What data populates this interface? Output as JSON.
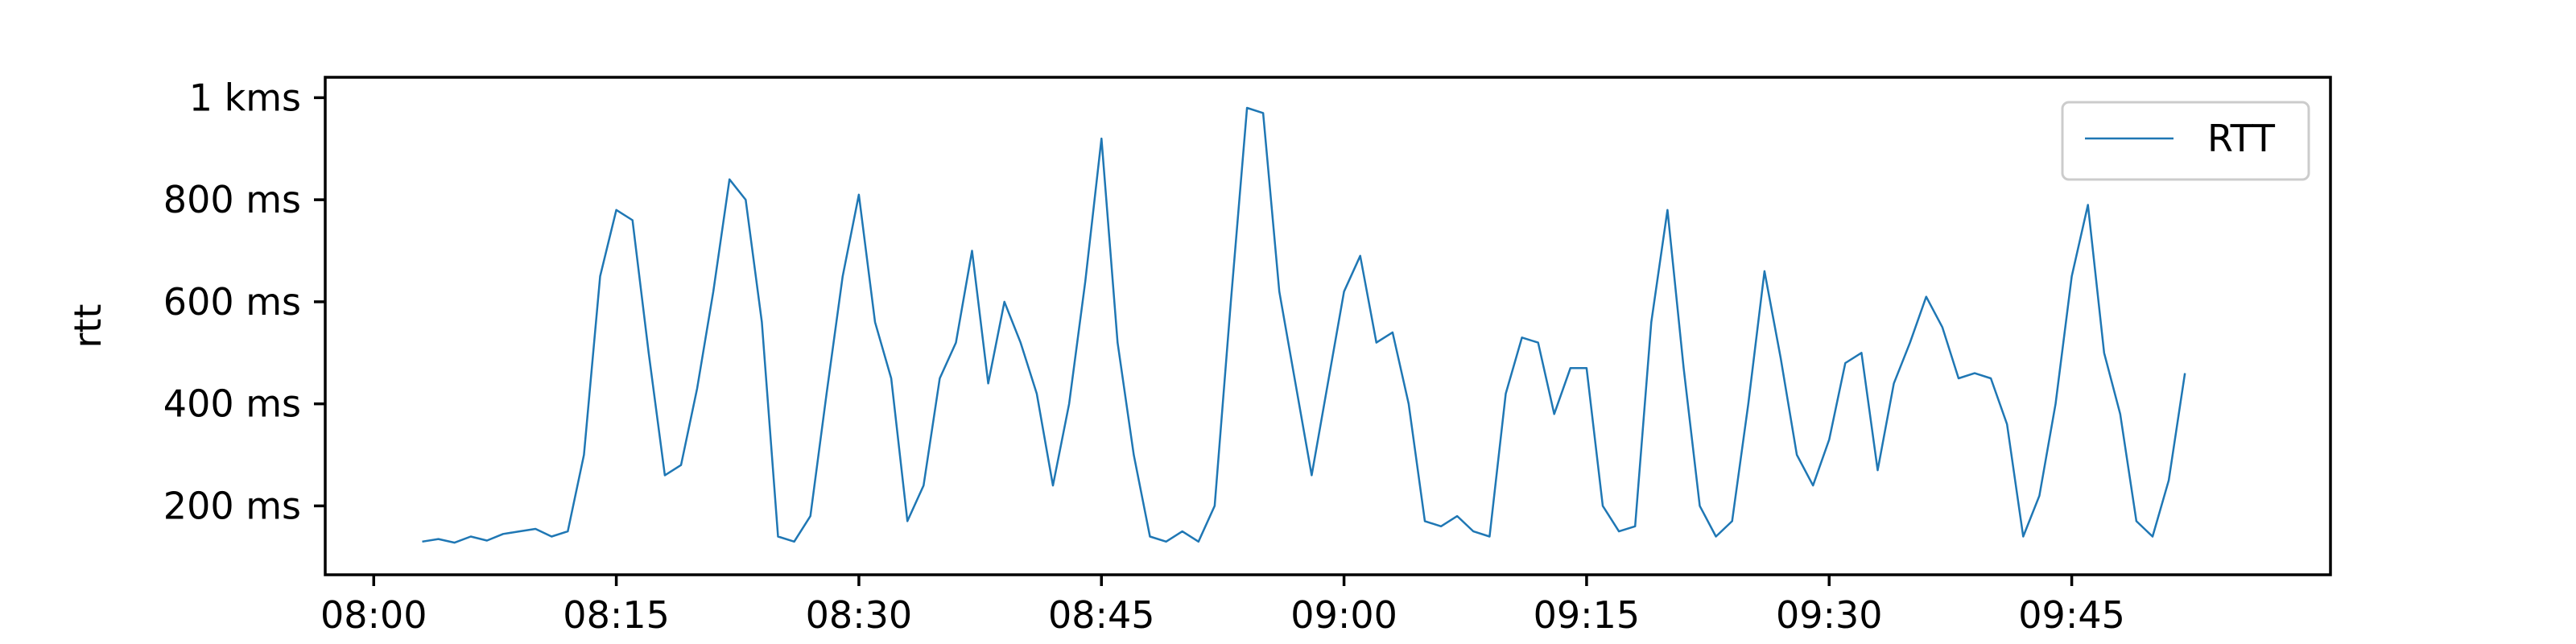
{
  "chart_data": {
    "type": "line",
    "title": "",
    "xlabel": "",
    "ylabel": "rtt",
    "xlim": [
      "07:57",
      "10:01"
    ],
    "ylim": [
      65,
      1040
    ],
    "grid": false,
    "legend_position": "top-right",
    "x_ticks": [
      "08:00",
      "08:15",
      "08:30",
      "08:45",
      "09:00",
      "09:15",
      "09:30",
      "09:45"
    ],
    "y_ticks": [
      {
        "value": 200,
        "label": "200 ms"
      },
      {
        "value": 400,
        "label": "400 ms"
      },
      {
        "value": 600,
        "label": "600 ms"
      },
      {
        "value": 800,
        "label": "800 ms"
      },
      {
        "value": 1000,
        "label": "1 kms"
      }
    ],
    "series": [
      {
        "name": "RTT",
        "color": "#1f77b4",
        "points": [
          [
            "08:03",
            130
          ],
          [
            "08:04",
            135
          ],
          [
            "08:05",
            128
          ],
          [
            "08:06",
            140
          ],
          [
            "08:07",
            132
          ],
          [
            "08:08",
            145
          ],
          [
            "08:09",
            150
          ],
          [
            "08:10",
            155
          ],
          [
            "08:11",
            140
          ],
          [
            "08:12",
            150
          ],
          [
            "08:13",
            300
          ],
          [
            "08:14",
            650
          ],
          [
            "08:15",
            780
          ],
          [
            "08:16",
            760
          ],
          [
            "08:17",
            500
          ],
          [
            "08:18",
            260
          ],
          [
            "08:19",
            280
          ],
          [
            "08:20",
            430
          ],
          [
            "08:21",
            620
          ],
          [
            "08:22",
            840
          ],
          [
            "08:23",
            800
          ],
          [
            "08:24",
            560
          ],
          [
            "08:25",
            140
          ],
          [
            "08:26",
            130
          ],
          [
            "08:27",
            180
          ],
          [
            "08:28",
            420
          ],
          [
            "08:29",
            650
          ],
          [
            "08:30",
            810
          ],
          [
            "08:31",
            560
          ],
          [
            "08:32",
            450
          ],
          [
            "08:33",
            170
          ],
          [
            "08:34",
            240
          ],
          [
            "08:35",
            450
          ],
          [
            "08:36",
            520
          ],
          [
            "08:37",
            700
          ],
          [
            "08:38",
            440
          ],
          [
            "08:39",
            600
          ],
          [
            "08:40",
            520
          ],
          [
            "08:41",
            420
          ],
          [
            "08:42",
            240
          ],
          [
            "08:43",
            400
          ],
          [
            "08:44",
            640
          ],
          [
            "08:45",
            920
          ],
          [
            "08:46",
            520
          ],
          [
            "08:47",
            300
          ],
          [
            "08:48",
            140
          ],
          [
            "08:49",
            130
          ],
          [
            "08:50",
            150
          ],
          [
            "08:51",
            130
          ],
          [
            "08:52",
            200
          ],
          [
            "08:53",
            600
          ],
          [
            "08:54",
            980
          ],
          [
            "08:55",
            970
          ],
          [
            "08:56",
            620
          ],
          [
            "08:57",
            440
          ],
          [
            "08:58",
            260
          ],
          [
            "08:59",
            440
          ],
          [
            "09:00",
            620
          ],
          [
            "09:01",
            690
          ],
          [
            "09:02",
            520
          ],
          [
            "09:03",
            540
          ],
          [
            "09:04",
            400
          ],
          [
            "09:05",
            170
          ],
          [
            "09:06",
            160
          ],
          [
            "09:07",
            180
          ],
          [
            "09:08",
            150
          ],
          [
            "09:09",
            140
          ],
          [
            "09:10",
            420
          ],
          [
            "09:11",
            530
          ],
          [
            "09:12",
            520
          ],
          [
            "09:13",
            380
          ],
          [
            "09:14",
            470
          ],
          [
            "09:15",
            470
          ],
          [
            "09:16",
            200
          ],
          [
            "09:17",
            150
          ],
          [
            "09:18",
            160
          ],
          [
            "09:19",
            560
          ],
          [
            "09:20",
            780
          ],
          [
            "09:21",
            470
          ],
          [
            "09:22",
            200
          ],
          [
            "09:23",
            140
          ],
          [
            "09:24",
            170
          ],
          [
            "09:25",
            400
          ],
          [
            "09:26",
            660
          ],
          [
            "09:27",
            490
          ],
          [
            "09:28",
            300
          ],
          [
            "09:29",
            240
          ],
          [
            "09:30",
            330
          ],
          [
            "09:31",
            480
          ],
          [
            "09:32",
            500
          ],
          [
            "09:33",
            270
          ],
          [
            "09:34",
            440
          ],
          [
            "09:35",
            520
          ],
          [
            "09:36",
            610
          ],
          [
            "09:37",
            550
          ],
          [
            "09:38",
            450
          ],
          [
            "09:39",
            460
          ],
          [
            "09:40",
            450
          ],
          [
            "09:41",
            360
          ],
          [
            "09:42",
            140
          ],
          [
            "09:43",
            220
          ],
          [
            "09:44",
            400
          ],
          [
            "09:45",
            650
          ],
          [
            "09:46",
            790
          ],
          [
            "09:47",
            500
          ],
          [
            "09:48",
            380
          ],
          [
            "09:49",
            170
          ],
          [
            "09:50",
            140
          ],
          [
            "09:51",
            250
          ],
          [
            "09:52",
            460
          ]
        ]
      }
    ]
  }
}
